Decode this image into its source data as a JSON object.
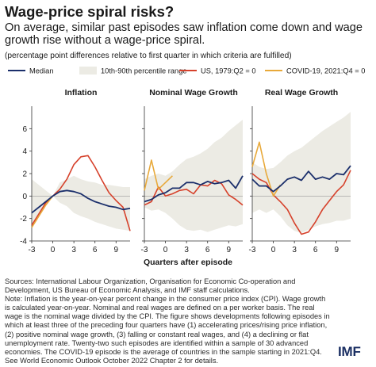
{
  "header": {
    "title": "Wage-price spiral risks?",
    "subtitle": "On average, similar past episodes saw inflation come down and wage growth rise without a wage-price spiral.",
    "note": "(percentage point differences relative to first quarter in which criteria are fulfilled)"
  },
  "footer": {
    "sources": "Sources: International Labour Organization, Organisation for Economic Co-operation and Development, US Bureau of Economic Analysis, and IMF staff calculations.",
    "note": "Note: Inflation is the year-on-year percent change in the consumer price index (CPI). Wage growth is calculated year-on-year. Nominal and real wages are defined on a per worker basis. The real wage is the nominal wage divided by the CPI. The figure shows developments following episodes in which at least three of the preceding four quarters have (1) accelerating prices/rising price inflation, (2) positive nominal wage growth, (3) falling or constant real wages, and (4) a declining or flat unemployment rate. Twenty-two such episodes are identified within a sample of 30 advanced economies. The COVID-19 episode is the average of countries in the sample starting in 2021:Q4. See World Economic Outlook October 2022 Chapter 2 for details.",
    "logo": "IMF"
  },
  "colors": {
    "median": "#1b2f6b",
    "band": "#ecebe4",
    "us1979": "#d6412b",
    "covid": "#e8a93a",
    "axis": "#333333",
    "zero": "#999999"
  },
  "chart_data": {
    "type": "line",
    "xlabel": "Quarters after episode",
    "ylim": [
      -4,
      8
    ],
    "yticks": [
      -4,
      -2,
      0,
      2,
      4,
      6
    ],
    "xlim": [
      -3,
      11
    ],
    "xticks": [
      -3,
      0,
      3,
      6,
      9
    ],
    "legend": {
      "position": "top",
      "entries": [
        {
          "key": "median",
          "label": "Median",
          "style": "line"
        },
        {
          "key": "band",
          "label": "10th-90th percentile range",
          "style": "area"
        },
        {
          "key": "us1979",
          "label": "US, 1979:Q2 = 0",
          "style": "line"
        },
        {
          "key": "covid",
          "label": "COVID-19, 2021:Q4 = 0",
          "style": "line"
        }
      ]
    },
    "panels": [
      {
        "title": "Inflation",
        "x": [
          -3,
          -2,
          -1,
          0,
          1,
          2,
          3,
          4,
          5,
          6,
          7,
          8,
          9,
          10,
          11
        ],
        "band_low": [
          -2.7,
          -1.8,
          -0.9,
          0,
          -0.6,
          -0.9,
          -1.5,
          -1.8,
          -2.0,
          -2.3,
          -2.5,
          -2.7,
          -2.9,
          -3.0,
          -3.1
        ],
        "band_high": [
          1.5,
          1.0,
          0.5,
          0,
          1.2,
          1.5,
          1.8,
          1.5,
          1.3,
          1.2,
          1.0,
          1.0,
          0.9,
          0.8,
          0.8
        ],
        "median": [
          -1.5,
          -1.0,
          -0.5,
          0,
          0.4,
          0.5,
          0.4,
          0.2,
          -0.2,
          -0.5,
          -0.7,
          -0.9,
          -1.0,
          -1.2,
          -1.1
        ],
        "us1979": [
          -2.6,
          -1.6,
          -0.6,
          0,
          0.6,
          1.5,
          2.8,
          3.5,
          3.6,
          2.6,
          1.4,
          0.3,
          -0.4,
          -1.0,
          -3.1
        ],
        "covid": [
          -2.8,
          -1.8,
          -0.8,
          0
        ]
      },
      {
        "title": "Nominal Wage Growth",
        "x": [
          -3,
          -2,
          -1,
          0,
          1,
          2,
          3,
          4,
          5,
          6,
          7,
          8,
          9,
          10,
          11
        ],
        "band_low": [
          -1.0,
          -1.3,
          -1.2,
          -1.5,
          -2.0,
          -2.6,
          -3.0,
          -3.1,
          -3.0,
          -3.2,
          -3.0,
          -2.8,
          -2.6,
          -2.7,
          -2.5
        ],
        "band_high": [
          1.5,
          1.8,
          2.0,
          1.8,
          2.2,
          2.8,
          3.3,
          3.5,
          3.8,
          4.2,
          4.8,
          5.2,
          5.8,
          6.3,
          6.8
        ],
        "median": [
          -0.5,
          -0.3,
          0.1,
          0.3,
          0.7,
          0.7,
          1.2,
          1.2,
          1.0,
          1.3,
          1.1,
          1.2,
          1.4,
          0.7,
          1.8
        ],
        "us1979": [
          -0.8,
          -0.5,
          0.8,
          0.0,
          0.2,
          0.5,
          0.6,
          0.2,
          1.0,
          0.9,
          1.4,
          1.1,
          0.1,
          -0.3,
          -0.8
        ],
        "covid": [
          0.5,
          3.2,
          0.6,
          1.2,
          1.8
        ]
      },
      {
        "title": "Real Wage Growth",
        "x": [
          -3,
          -2,
          -1,
          0,
          1,
          2,
          3,
          4,
          5,
          6,
          7,
          8,
          9,
          10,
          11
        ],
        "band_low": [
          -1.5,
          -1.2,
          -1.5,
          -1.2,
          -1.8,
          -2.6,
          -3.1,
          -3.3,
          -3.0,
          -2.7,
          -2.5,
          -2.4,
          -2.2,
          -2.2,
          -2.0
        ],
        "band_high": [
          3.0,
          2.6,
          2.4,
          2.5,
          3.0,
          3.6,
          4.0,
          4.3,
          4.8,
          5.3,
          5.8,
          6.2,
          6.6,
          7.0,
          7.5
        ],
        "median": [
          1.5,
          0.9,
          0.9,
          0.4,
          0.9,
          1.5,
          1.7,
          1.4,
          2.2,
          1.5,
          1.7,
          1.5,
          2.0,
          1.9,
          2.7
        ],
        "us1979": [
          2.0,
          1.5,
          1.2,
          0.1,
          -0.5,
          -1.2,
          -2.4,
          -3.4,
          -3.2,
          -2.3,
          -1.2,
          -0.4,
          0.4,
          1.0,
          2.3
        ],
        "covid": [
          2.6,
          4.8,
          2.0,
          0.0,
          1.0
        ]
      }
    ]
  }
}
